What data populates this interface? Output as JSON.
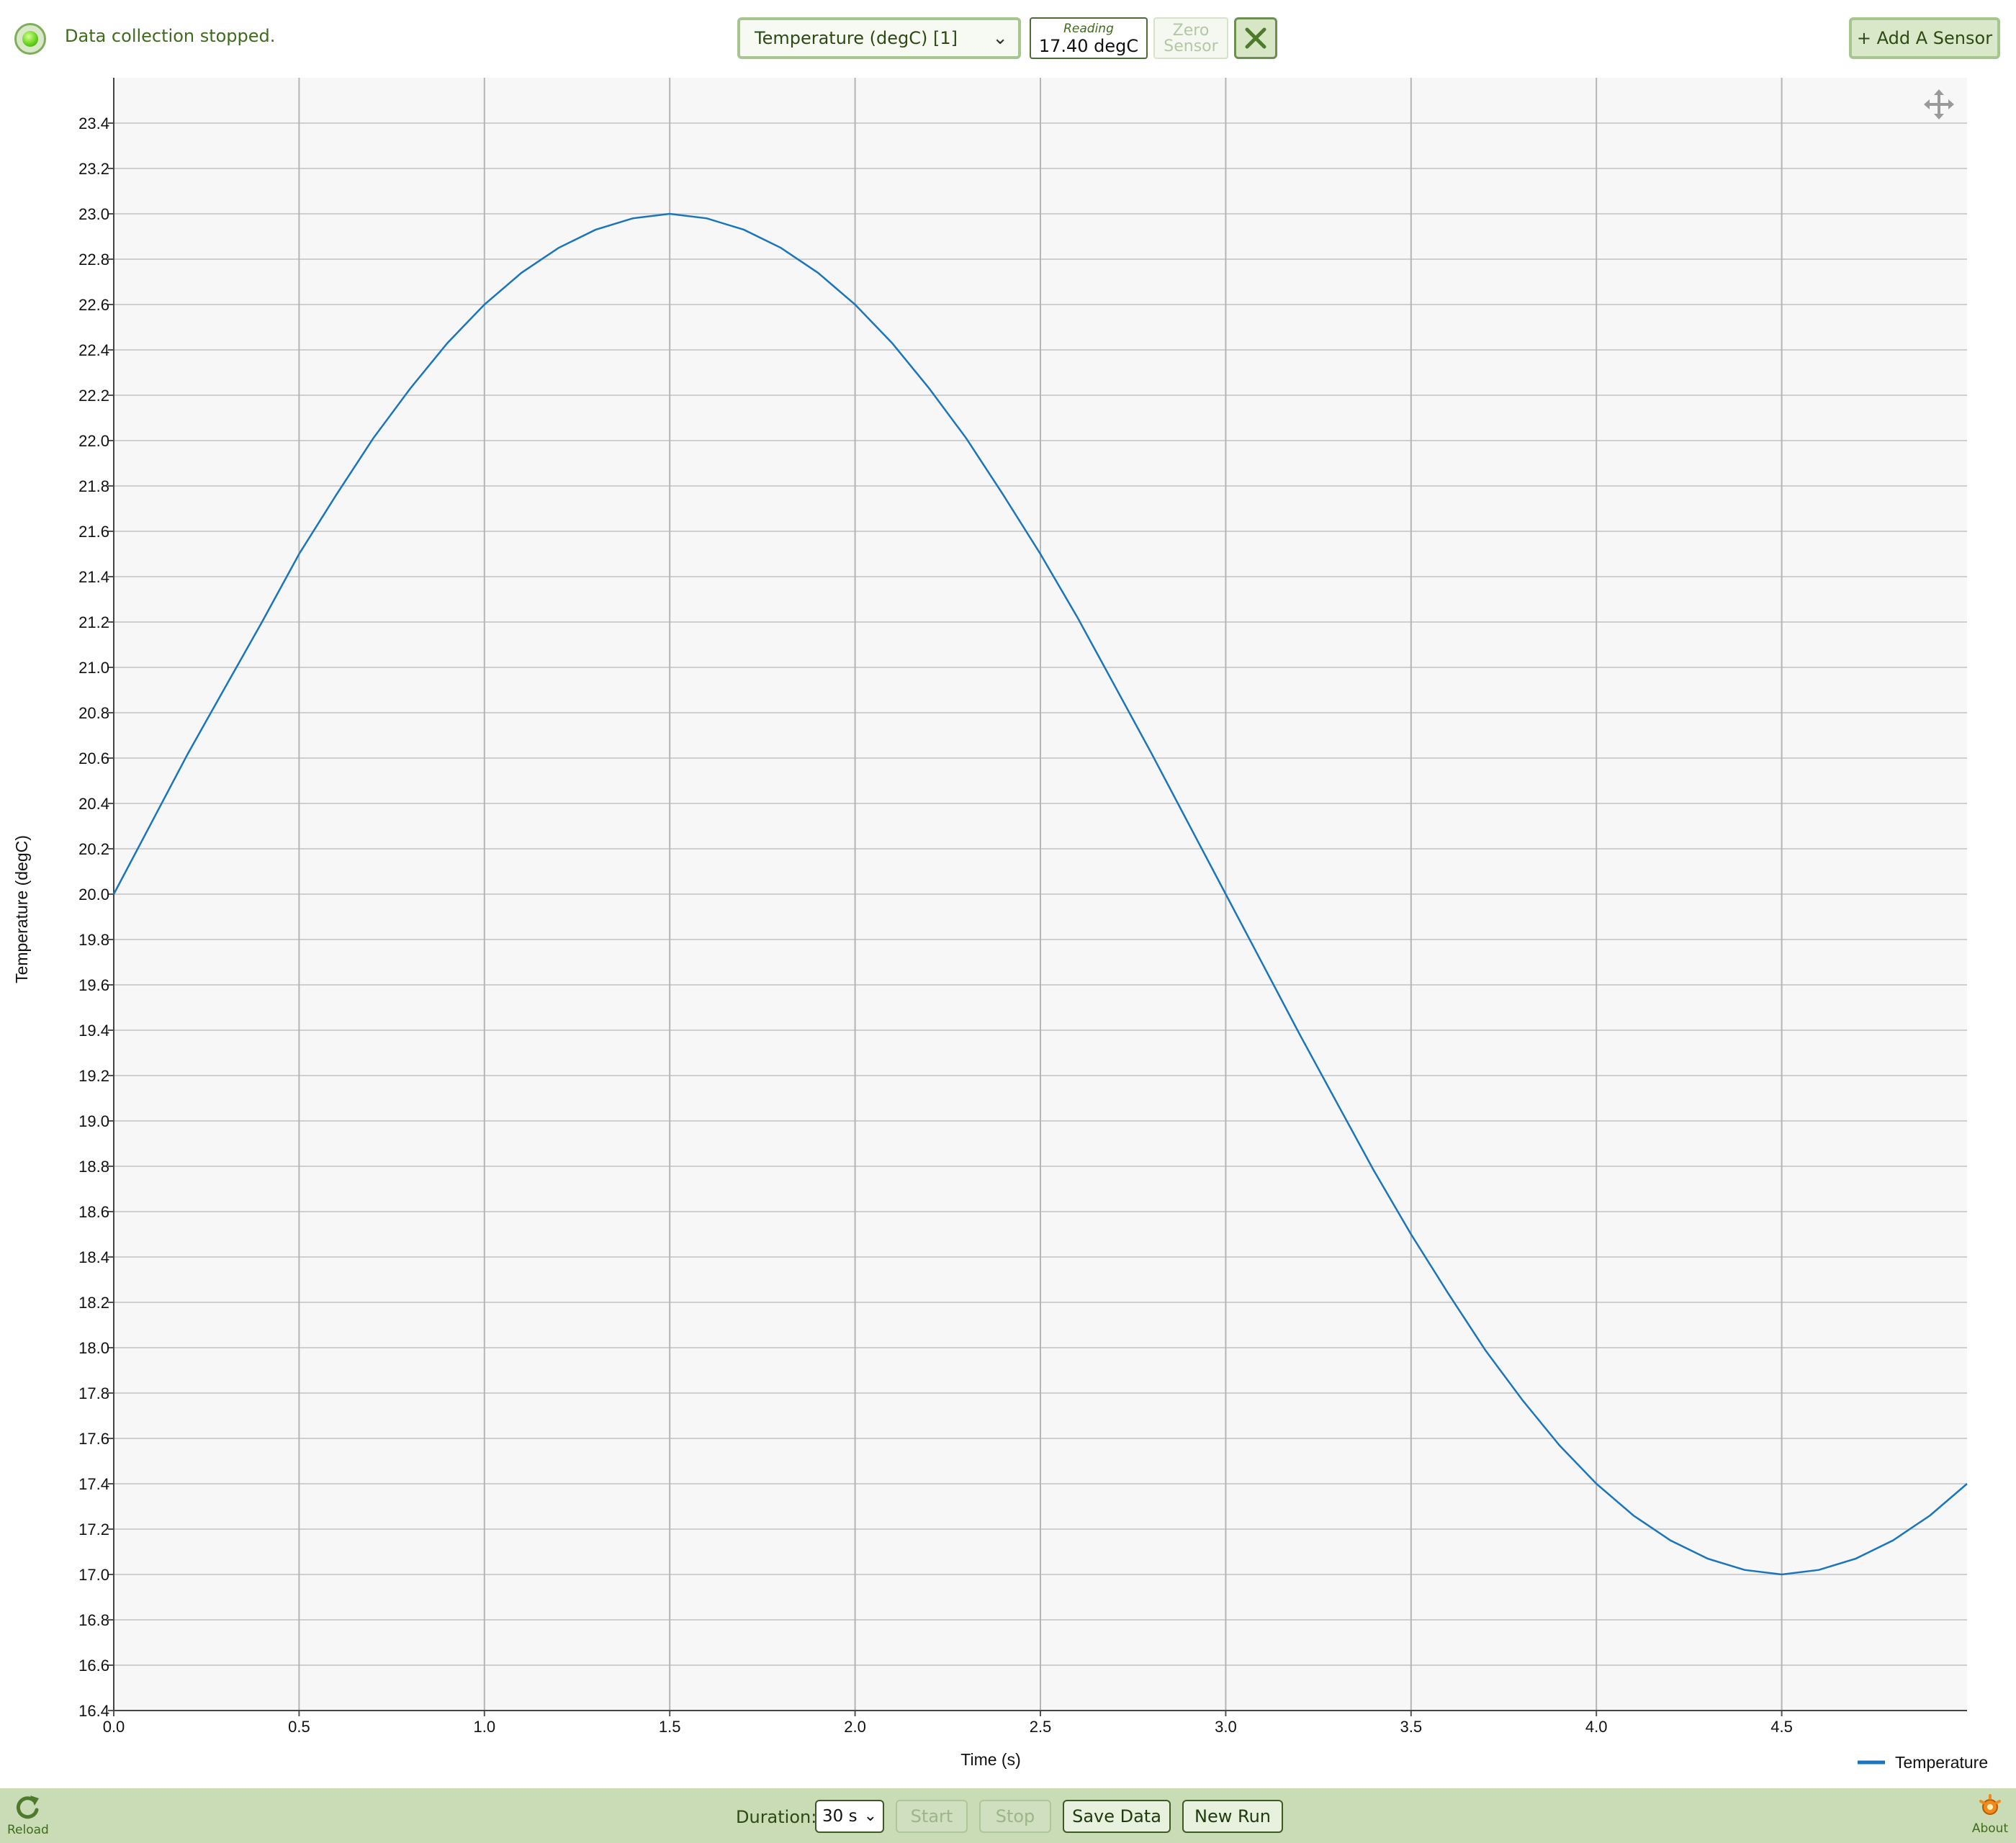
{
  "status": {
    "text": "Data collection stopped."
  },
  "sensor": {
    "selected": "Temperature (degC) [1]",
    "reading_label": "Reading",
    "reading_value": "17.40 degC",
    "zero_label": "Zero Sensor",
    "add_label": "+ Add A Sensor"
  },
  "footer": {
    "reload_label": "Reload",
    "duration_label": "Duration:",
    "duration_value": "30 s",
    "start_label": "Start",
    "stop_label": "Stop",
    "save_label": "Save Data",
    "new_run_label": "New Run",
    "about_label": "About"
  },
  "colors": {
    "accent": "#c9dcb5",
    "series": "#1a75bc",
    "plot_bg": "#f7f7f7"
  },
  "chart_data": {
    "type": "line",
    "xlabel": "Time (s)",
    "ylabel": "Temperature (degC)",
    "xlim": [
      0,
      5
    ],
    "ylim": [
      16.4,
      23.6
    ],
    "x_ticks": [
      0.0,
      0.5,
      1.0,
      1.5,
      2.0,
      2.5,
      3.0,
      3.5,
      4.0,
      4.5
    ],
    "y_ticks": [
      16.4,
      16.6,
      16.8,
      17.0,
      17.2,
      17.4,
      17.6,
      17.8,
      18.0,
      18.2,
      18.4,
      18.6,
      18.8,
      19.0,
      19.2,
      19.4,
      19.6,
      19.8,
      20.0,
      20.2,
      20.4,
      20.6,
      20.8,
      21.0,
      21.2,
      21.4,
      21.6,
      21.8,
      22.0,
      22.2,
      22.4,
      22.6,
      22.8,
      23.0,
      23.2,
      23.4
    ],
    "grid": true,
    "legend": "bottom-right",
    "series": [
      {
        "name": "Temperature",
        "x": [
          0.0,
          0.1,
          0.2,
          0.3,
          0.4,
          0.5,
          0.6,
          0.7,
          0.8,
          0.9,
          1.0,
          1.1,
          1.2,
          1.3,
          1.4,
          1.5,
          1.6,
          1.7,
          1.8,
          1.9,
          2.0,
          2.1,
          2.2,
          2.3,
          2.4,
          2.5,
          2.6,
          2.7,
          2.8,
          2.9,
          3.0,
          3.1,
          3.2,
          3.3,
          3.4,
          3.5,
          3.6,
          3.7,
          3.8,
          3.9,
          4.0,
          4.1,
          4.2,
          4.3,
          4.4,
          4.5,
          4.6,
          4.7,
          4.8,
          4.9,
          5.0
        ],
        "y": [
          20.0,
          20.31,
          20.62,
          20.91,
          21.2,
          21.5,
          21.76,
          22.01,
          22.23,
          22.43,
          22.6,
          22.74,
          22.85,
          22.93,
          22.98,
          23.0,
          22.98,
          22.93,
          22.85,
          22.74,
          22.6,
          22.43,
          22.23,
          22.01,
          21.76,
          21.5,
          21.22,
          20.92,
          20.62,
          20.31,
          20.0,
          19.69,
          19.38,
          19.08,
          18.78,
          18.5,
          18.24,
          17.99,
          17.77,
          17.57,
          17.4,
          17.26,
          17.15,
          17.07,
          17.02,
          17.0,
          17.02,
          17.07,
          17.15,
          17.26,
          17.4
        ]
      }
    ]
  }
}
